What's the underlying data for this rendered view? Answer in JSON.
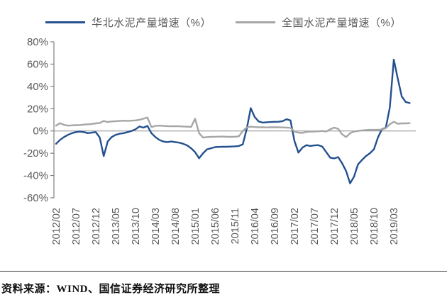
{
  "legend": [
    {
      "label": "华北水泥产量增速（%）",
      "color": "#24508F"
    },
    {
      "label": "全国水泥产量增速（%）",
      "color": "#A6A6A6"
    }
  ],
  "source_note": "资料来源：WIND、国信证券经济研究所整理",
  "colors": {
    "north_china_line": "#24508F",
    "national_line": "#A6A6A6",
    "axis_text": "#595959",
    "axis_line": "#808080",
    "zero_line": "#8c8c8c"
  },
  "chart_data": {
    "type": "line",
    "title": "",
    "xlabel": "",
    "ylabel": "",
    "ylim": [
      -60,
      80
    ],
    "y_tick_labels": [
      "80%",
      "60%",
      "40%",
      "20%",
      "0%",
      "-20%",
      "-40%",
      "-60%"
    ],
    "y_tick_values": [
      80,
      60,
      40,
      20,
      0,
      -20,
      -40,
      -60
    ],
    "x_tick_labels": [
      "2012/02",
      "2012/07",
      "2012/12",
      "2013/05",
      "2013/10",
      "2014/03",
      "2014/08",
      "2015/01",
      "2015/06",
      "2015/11",
      "2016/04",
      "2016/09",
      "2017/02",
      "2017/07",
      "2017/12",
      "2018/05",
      "2018/10",
      "2019/03"
    ],
    "x_tick_interval_months": 5,
    "grid": "horizontal-zero-line-only",
    "legend_position": "top-center",
    "months": [
      "2012/02",
      "2012/03",
      "2012/04",
      "2012/05",
      "2012/06",
      "2012/07",
      "2012/08",
      "2012/09",
      "2012/10",
      "2012/11",
      "2012/12",
      "2013/01",
      "2013/02",
      "2013/03",
      "2013/04",
      "2013/05",
      "2013/06",
      "2013/07",
      "2013/08",
      "2013/09",
      "2013/10",
      "2013/11",
      "2013/12",
      "2014/01",
      "2014/02",
      "2014/03",
      "2014/04",
      "2014/05",
      "2014/06",
      "2014/07",
      "2014/08",
      "2014/09",
      "2014/10",
      "2014/11",
      "2014/12",
      "2015/01",
      "2015/02",
      "2015/03",
      "2015/04",
      "2015/05",
      "2015/06",
      "2015/07",
      "2015/08",
      "2015/09",
      "2015/10",
      "2015/11",
      "2015/12",
      "2016/01",
      "2016/02",
      "2016/03",
      "2016/04",
      "2016/05",
      "2016/06",
      "2016/07",
      "2016/08",
      "2016/09",
      "2016/10",
      "2016/11",
      "2016/12",
      "2017/01",
      "2017/02",
      "2017/03",
      "2017/04",
      "2017/05",
      "2017/06",
      "2017/07",
      "2017/08",
      "2017/09",
      "2017/10",
      "2017/11",
      "2017/12",
      "2018/01",
      "2018/02",
      "2018/03",
      "2018/04",
      "2018/05",
      "2018/06",
      "2018/07",
      "2018/08",
      "2018/09",
      "2018/10",
      "2018/11",
      "2018/12",
      "2019/01",
      "2019/02",
      "2019/03",
      "2019/04",
      "2019/05",
      "2019/06",
      "2019/07"
    ],
    "series": [
      {
        "name": "华北水泥产量增速（%）",
        "color": "#24508F",
        "values": [
          -11.5,
          -8,
          -5.5,
          -3.5,
          -2,
          -1,
          -0.5,
          -1,
          -2,
          -1.5,
          -1,
          -6,
          -22.5,
          -9.5,
          -5.5,
          -3.5,
          -2.5,
          -2,
          -1,
          0,
          1.5,
          4,
          3,
          4.5,
          -2,
          -5.5,
          -8,
          -9.5,
          -10,
          -9.5,
          -10,
          -10.5,
          -11.5,
          -13,
          -15.5,
          -19,
          -24.5,
          -20,
          -16.5,
          -15.5,
          -14.5,
          -14.3,
          -14.2,
          -14.2,
          -14,
          -13.8,
          -13.5,
          -12,
          2,
          20.5,
          12.5,
          8.5,
          7.5,
          7.8,
          8,
          8.2,
          8.3,
          8.8,
          10.5,
          9.5,
          -9,
          -19.5,
          -15,
          -12.7,
          -13.5,
          -13,
          -12.7,
          -14,
          -19,
          -24,
          -24.6,
          -23.5,
          -29,
          -36,
          -47,
          -41,
          -30,
          -26,
          -22.5,
          -20,
          -16.5,
          -6,
          1.5,
          3,
          21,
          64,
          47,
          31,
          26,
          25
        ]
      },
      {
        "name": "全国水泥产量增速（%）",
        "color": "#A6A6A6",
        "values": [
          4.8,
          7,
          5.5,
          4.8,
          5,
          5.2,
          5.3,
          5.7,
          6,
          6.3,
          6.8,
          7.2,
          9,
          8,
          8.5,
          8.8,
          9,
          9.2,
          9,
          9.2,
          9.5,
          10,
          11,
          12,
          3.5,
          4.5,
          4.8,
          4.5,
          4.3,
          4.2,
          4.3,
          4.2,
          4,
          3.8,
          3.6,
          11,
          -2,
          -6,
          -5.5,
          -5.3,
          -5.2,
          -5.1,
          -5,
          -5.2,
          -5.3,
          -5.2,
          -4.8,
          0,
          3.2,
          3.8,
          3.5,
          3.4,
          3.3,
          3.2,
          3.3,
          3.4,
          3.3,
          3.2,
          3,
          2.8,
          -0.5,
          -1.5,
          -1.7,
          -0.8,
          -0.5,
          -0.5,
          -0.3,
          0,
          -0.5,
          1.5,
          3,
          2,
          -3,
          -5.5,
          -2,
          -0.5,
          0,
          0.5,
          0.8,
          1,
          1,
          1,
          1.2,
          2.5,
          6,
          8.3,
          6.5,
          6.8,
          6.8,
          7
        ]
      }
    ]
  }
}
